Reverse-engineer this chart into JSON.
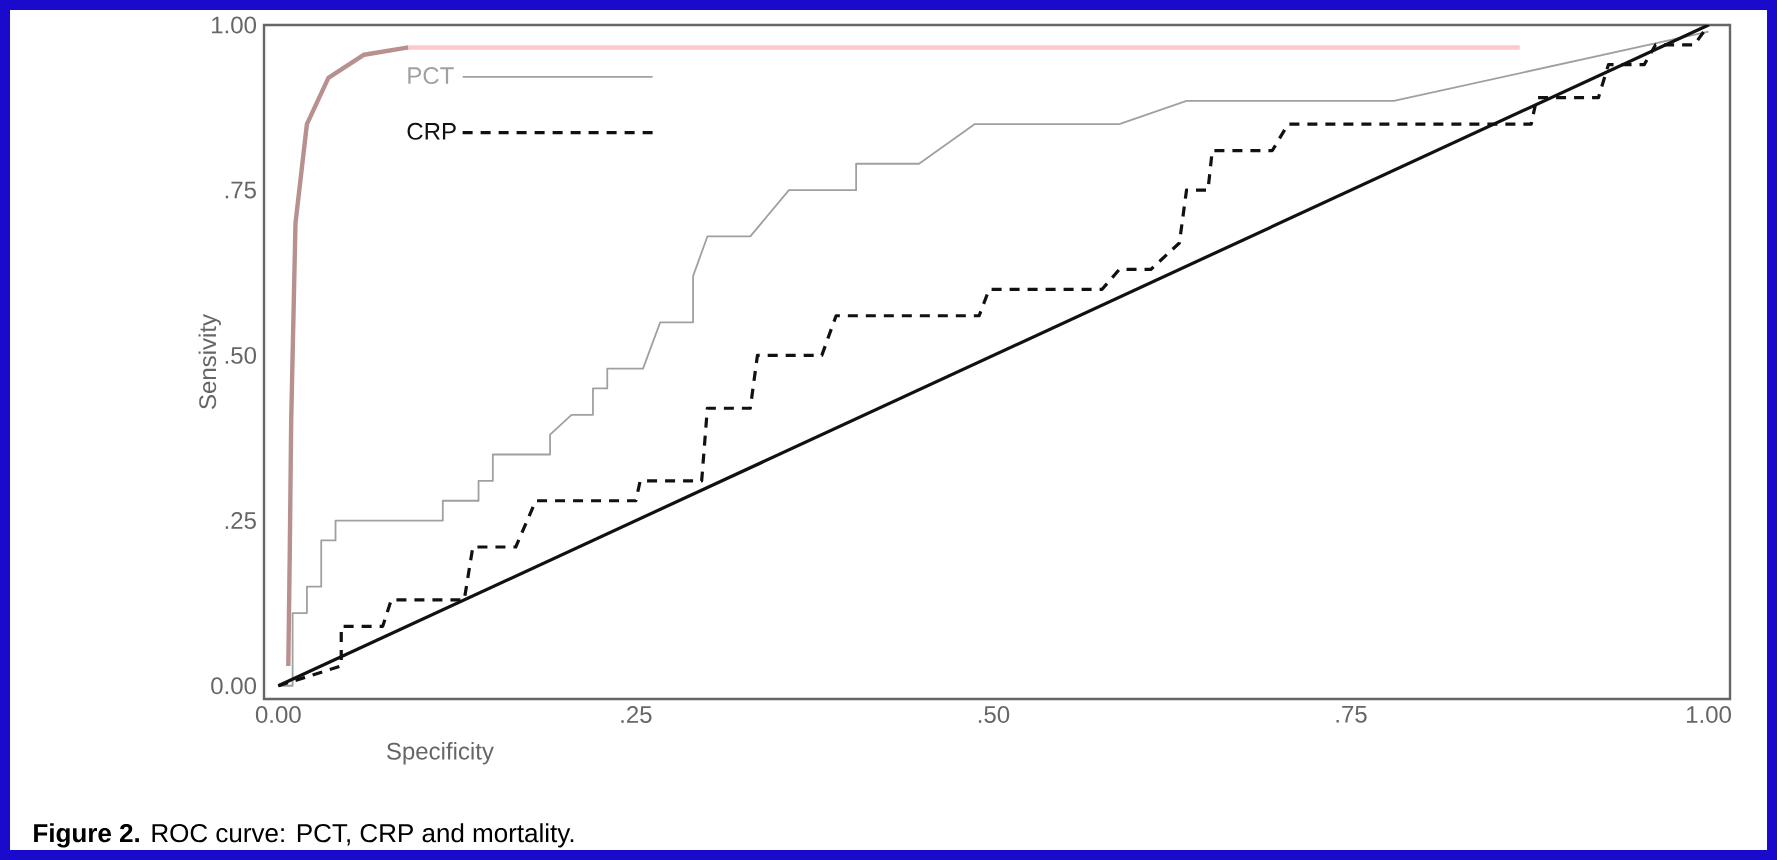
{
  "chart_data": {
    "type": "line",
    "xlabel": "Specificity",
    "ylabel": "Sensivity",
    "xlim": [
      -0.01,
      1.015
    ],
    "ylim": [
      -0.02,
      1.0
    ],
    "xticks": [
      {
        "value": 0,
        "label": "0.00"
      },
      {
        "value": 0.25,
        "label": ".25"
      },
      {
        "value": 0.5,
        "label": ".50"
      },
      {
        "value": 0.75,
        "label": ".75"
      },
      {
        "value": 1,
        "label": "1.00"
      }
    ],
    "yticks": [
      {
        "value": 0,
        "label": "0.00"
      },
      {
        "value": 0.25,
        "label": ".25"
      },
      {
        "value": 0.5,
        "label": ".50"
      },
      {
        "value": 0.75,
        "label": ".75"
      },
      {
        "value": 1,
        "label": "1.00"
      }
    ],
    "legend": "top left",
    "grid": false,
    "annotations": [
      "**Figure 2.** ROC curve: PCT, CRP and mortality."
    ],
    "series": [
      {
        "name": "PCT",
        "color": "#a0a0a0",
        "line_style": "solid",
        "x": [
          0,
          0.01,
          0.01,
          0.02,
          0.02,
          0.03,
          0.03,
          0.04,
          0.04,
          0.115,
          0.115,
          0.14,
          0.14,
          0.15,
          0.15,
          0.19,
          0.19,
          0.205,
          0.22,
          0.22,
          0.23,
          0.23,
          0.255,
          0.267,
          0.29,
          0.29,
          0.3,
          0.33,
          0.357,
          0.404,
          0.404,
          0.448,
          0.487,
          0.588,
          0.635,
          0.78,
          1.0
        ],
        "values": [
          0,
          0,
          0.11,
          0.11,
          0.15,
          0.15,
          0.22,
          0.22,
          0.25,
          0.25,
          0.28,
          0.28,
          0.31,
          0.31,
          0.35,
          0.35,
          0.38,
          0.41,
          0.41,
          0.45,
          0.45,
          0.48,
          0.48,
          0.55,
          0.55,
          0.62,
          0.68,
          0.68,
          0.75,
          0.75,
          0.79,
          0.79,
          0.85,
          0.85,
          0.885,
          0.885,
          0.99
        ]
      },
      {
        "name": "CRP",
        "color": "#111111",
        "line_style": "dashed",
        "x": [
          0,
          0.044,
          0.044,
          0.073,
          0.079,
          0.13,
          0.136,
          0.166,
          0.18,
          0.25,
          0.253,
          0.296,
          0.3,
          0.33,
          0.335,
          0.38,
          0.39,
          0.49,
          0.497,
          0.576,
          0.588,
          0.61,
          0.63,
          0.635,
          0.65,
          0.653,
          0.695,
          0.706,
          0.876,
          0.88,
          0.923,
          0.93,
          0.955,
          0.963,
          0.99,
          1.0
        ],
        "values": [
          0,
          0.03,
          0.09,
          0.09,
          0.13,
          0.13,
          0.21,
          0.21,
          0.28,
          0.28,
          0.31,
          0.31,
          0.42,
          0.42,
          0.5,
          0.5,
          0.56,
          0.56,
          0.6,
          0.6,
          0.63,
          0.63,
          0.67,
          0.75,
          0.75,
          0.81,
          0.81,
          0.85,
          0.85,
          0.89,
          0.89,
          0.94,
          0.94,
          0.97,
          0.97,
          1.0
        ]
      },
      {
        "color": "#111111",
        "line_style": "solid",
        "x": [
          0,
          1
        ],
        "values": [
          0,
          1
        ]
      },
      {
        "color": "#b89090",
        "line_style": "solid",
        "x": [
          0.007,
          0.008,
          0.009,
          0.012,
          0.02,
          0.035,
          0.06,
          0.091
        ],
        "values": [
          0.03,
          0.2,
          0.4,
          0.7,
          0.85,
          0.92,
          0.955,
          0.966
        ]
      },
      {
        "color": "#ffc8c8",
        "line_style": "solid",
        "x": [
          0.091,
          0.868
        ],
        "values": [
          0.966,
          0.966
        ]
      }
    ]
  }
}
